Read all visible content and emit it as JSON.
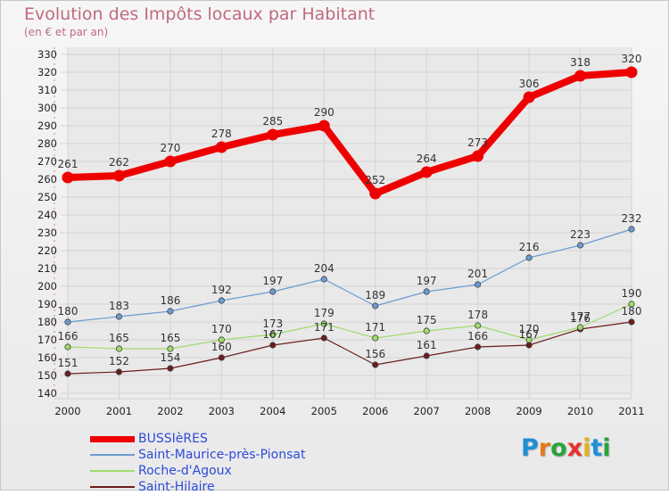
{
  "title": "Evolution des Impôts locaux par Habitant",
  "subtitle": "(en € et par an)",
  "brand": {
    "text": "Proxiti",
    "letter_colors": [
      "#1f8fd6",
      "#e57a1a",
      "#2aa33a",
      "#e5332a",
      "#e2b21a",
      "#1f8fd6",
      "#2aa33a"
    ]
  },
  "chart_data": {
    "type": "line",
    "x": [
      "2000",
      "2001",
      "2002",
      "2003",
      "2004",
      "2005",
      "2006",
      "2007",
      "2008",
      "2009",
      "2010",
      "2011"
    ],
    "ylim": [
      140,
      330
    ],
    "yticks": [
      140,
      150,
      160,
      170,
      180,
      190,
      200,
      210,
      220,
      230,
      240,
      250,
      260,
      270,
      280,
      290,
      300,
      310,
      320,
      330
    ],
    "grid": true,
    "legend_position": "bottom-left",
    "series": [
      {
        "name": "BUSSIèRES",
        "color": "#ee0000",
        "values": [
          261,
          262,
          270,
          278,
          285,
          290,
          252,
          264,
          273,
          306,
          318,
          320
        ],
        "labels": [
          "261",
          "262",
          "270",
          "278",
          "285",
          "290",
          "252",
          "264",
          "273",
          "306",
          "318",
          "320"
        ]
      },
      {
        "name": "Saint-Maurice-près-Pionsat",
        "color": "#6b9bd1",
        "values": [
          180,
          183,
          186,
          192,
          197,
          204,
          189,
          197,
          201,
          216,
          223,
          232
        ],
        "labels": [
          "180",
          "183",
          "186",
          "192",
          "197",
          "204",
          "189",
          "197",
          "201",
          "216",
          "223",
          "232"
        ]
      },
      {
        "name": "Roche-d'Agoux",
        "color": "#9edc6a",
        "values": [
          166,
          165,
          165,
          170,
          173,
          179,
          171,
          175,
          178,
          170,
          177,
          190
        ],
        "labels": [
          "166",
          "165",
          "165",
          "170",
          "173",
          "179",
          "171",
          "175",
          "178",
          "170",
          "177",
          "190"
        ]
      },
      {
        "name": "Saint-Hilaire",
        "color": "#6b1d1d",
        "values": [
          151,
          152,
          154,
          160,
          167,
          171,
          156,
          161,
          166,
          167,
          176,
          180
        ],
        "labels": [
          "151",
          "152",
          "154",
          "160",
          "167",
          "171",
          "156",
          "161",
          "166",
          "167",
          "176",
          "180"
        ]
      }
    ]
  }
}
